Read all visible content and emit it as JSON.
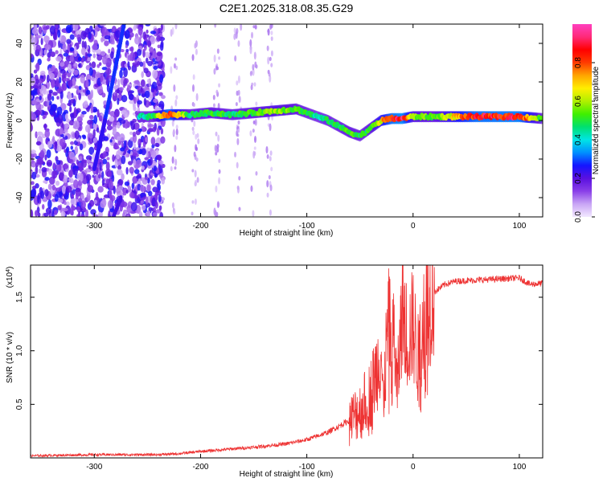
{
  "title": "C2E1.2025.318.08.35.G29",
  "chart_data": [
    {
      "type": "heatmap",
      "xlabel": "Height of straight line (km)",
      "ylabel": "Frequency (Hz)",
      "xlim": [
        -360,
        122
      ],
      "ylim": [
        -50,
        50
      ],
      "xticks": [
        -300,
        -200,
        -100,
        0,
        100
      ],
      "yticks": [
        -40,
        -20,
        0,
        20,
        40
      ],
      "colorbar": {
        "label": "Normalized spectral amplitude",
        "range": [
          0,
          1
        ],
        "ticks": [
          "0.0",
          "0.2",
          "0.4",
          "0.6",
          "0.8"
        ],
        "colors": [
          "#f2e8ff",
          "#c9a6f5",
          "#8a40e8",
          "#5a10e0",
          "#1414ff",
          "#0090ff",
          "#00e5e5",
          "#00e070",
          "#40f000",
          "#b0f000",
          "#ffee00",
          "#ffa500",
          "#ff3c00",
          "#ff0000",
          "#ff2a78",
          "#ff3fbf"
        ]
      },
      "ridge": {
        "x": [
          -258,
          -245,
          -230,
          -210,
          -190,
          -170,
          -150,
          -130,
          -110,
          -100,
          -90,
          -80,
          -70,
          -60,
          -50,
          -40,
          -30,
          -20,
          -10,
          0,
          20,
          60,
          100,
          122
        ],
        "y": [
          2,
          2,
          3,
          3,
          4,
          3,
          4,
          5,
          6,
          4,
          2,
          0,
          -3,
          -6,
          -8,
          -4,
          0,
          1,
          1,
          2,
          2,
          2,
          2,
          1
        ],
        "amplitude": [
          0.45,
          0.5,
          0.9,
          0.5,
          0.55,
          0.5,
          0.55,
          0.6,
          0.55,
          0.5,
          0.45,
          0.5,
          0.5,
          0.55,
          0.5,
          0.55,
          0.7,
          0.9,
          0.95,
          0.6,
          0.55,
          0.9,
          0.92,
          0.5
        ]
      }
    },
    {
      "type": "line",
      "xlabel": "Height of straight line (km)",
      "ylabel": "SNR (10 * v/v)",
      "y_multiplier": "(x10",
      "y_multiplier_exp": "4",
      "y_multiplier_close": ")",
      "xlim": [
        -360,
        122
      ],
      "ylim": [
        0,
        1.8
      ],
      "xticks": [
        -300,
        -200,
        -100,
        0,
        100
      ],
      "yticks": [
        0.5,
        1.0,
        1.5
      ],
      "series": [
        {
          "color": "#ee3333",
          "x": [
            -360,
            -300,
            -240,
            -220,
            -200,
            -150,
            -120,
            -100,
            -80,
            -60,
            -50,
            -40,
            -35,
            -30,
            -28,
            -25,
            -22,
            -20,
            -18,
            -15,
            -12,
            -10,
            -5,
            0,
            5,
            10,
            20,
            30,
            40,
            60,
            80,
            100,
            110,
            122
          ],
          "y": [
            0.02,
            0.03,
            0.03,
            0.04,
            0.06,
            0.1,
            0.13,
            0.17,
            0.24,
            0.35,
            0.45,
            0.6,
            0.8,
            1.0,
            0.5,
            1.05,
            1.3,
            0.9,
            1.2,
            0.6,
            1.1,
            1.45,
            1.1,
            1.25,
            0.9,
            1.4,
            1.55,
            1.62,
            1.65,
            1.66,
            1.67,
            1.68,
            1.62,
            1.63
          ]
        }
      ]
    }
  ]
}
